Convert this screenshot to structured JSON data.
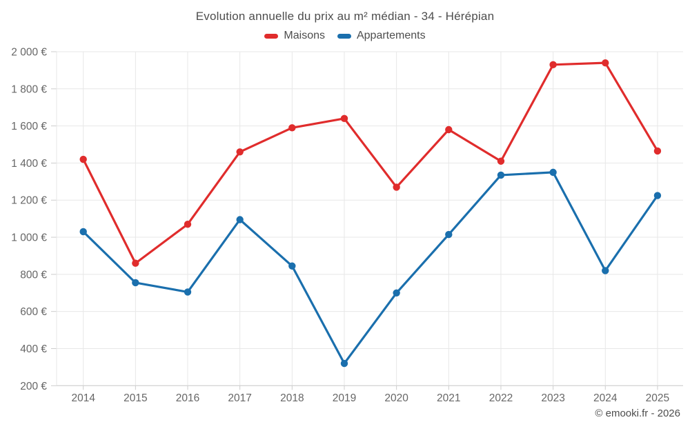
{
  "chart_data": {
    "type": "line",
    "title": "Evolution annuelle du prix au m² médian - 34 - Hérépian",
    "categories": [
      "2014",
      "2015",
      "2016",
      "2017",
      "2018",
      "2019",
      "2020",
      "2021",
      "2022",
      "2023",
      "2024",
      "2025"
    ],
    "series": [
      {
        "name": "Maisons",
        "color": "#e02c2c",
        "values": [
          1420,
          860,
          1070,
          1460,
          1590,
          1640,
          1270,
          1580,
          1410,
          1930,
          1940,
          1465
        ]
      },
      {
        "name": "Appartements",
        "color": "#1a6fad",
        "values": [
          1030,
          755,
          705,
          1095,
          845,
          320,
          700,
          1015,
          1335,
          1350,
          820,
          1225
        ]
      }
    ],
    "ylim": [
      200,
      2000
    ],
    "y_ticks": [
      {
        "v": 200,
        "label": "200 €"
      },
      {
        "v": 400,
        "label": "400 €"
      },
      {
        "v": 600,
        "label": "600 €"
      },
      {
        "v": 800,
        "label": "800 €"
      },
      {
        "v": 1000,
        "label": "1 000 €"
      },
      {
        "v": 1200,
        "label": "1 200 €"
      },
      {
        "v": 1400,
        "label": "1 400 €"
      },
      {
        "v": 1600,
        "label": "1 600 €"
      },
      {
        "v": 1800,
        "label": "1 800 €"
      },
      {
        "v": 2000,
        "label": "2 000 €"
      }
    ],
    "grid": true,
    "legend_position": "top",
    "xlabel": "",
    "ylabel": ""
  },
  "footer": {
    "credit": "© emooki.fr - 2026"
  },
  "colors": {
    "grid": "#e7e7e7",
    "axis": "#cccccc",
    "tick": "#cccccc",
    "axis_text": "#666666",
    "title_text": "#4d4d4d"
  }
}
